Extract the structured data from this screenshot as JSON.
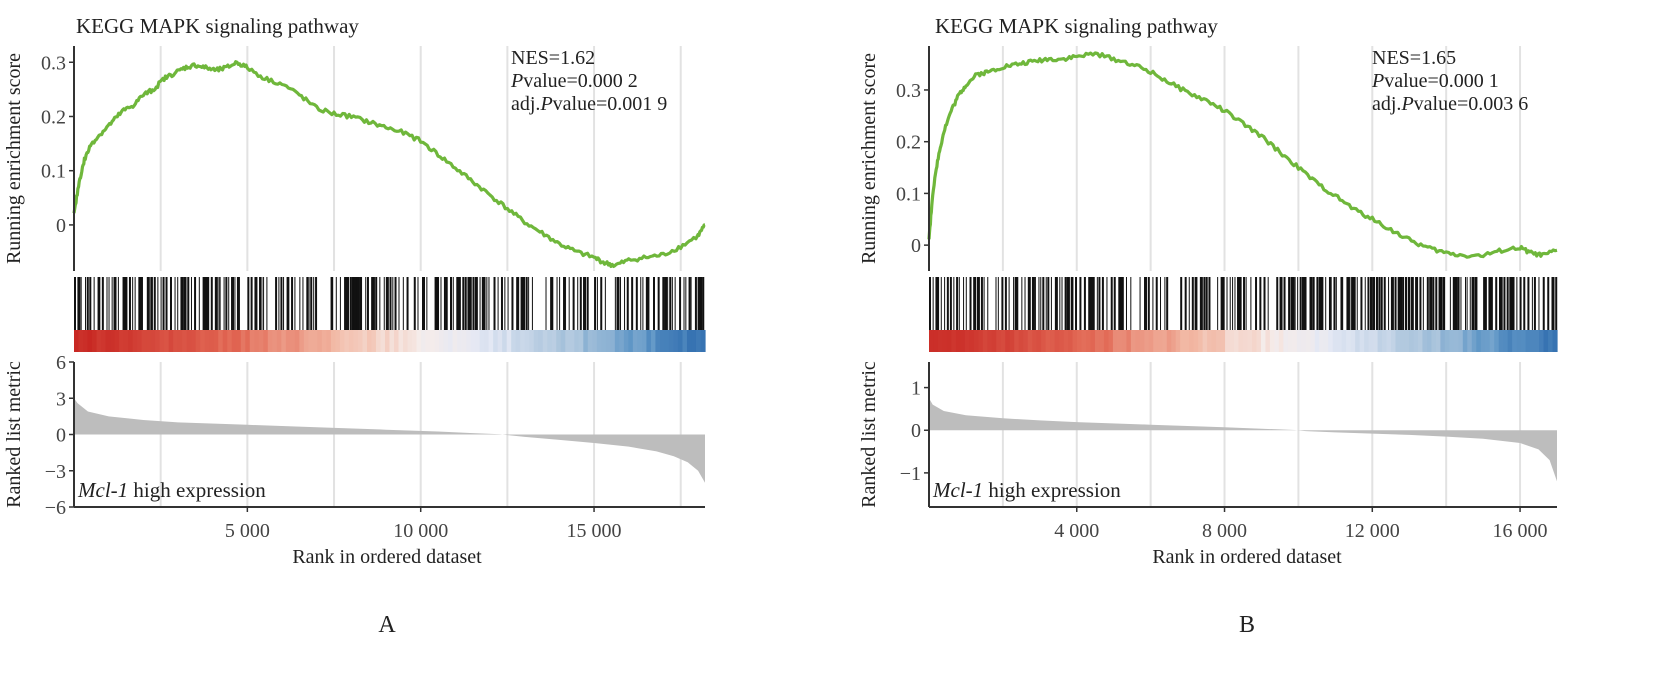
{
  "chart_data": [
    {
      "type": "line",
      "panel_label": "A",
      "title": "KEGG MAPK signaling pathway",
      "stats": {
        "nes": "NES=1.62",
        "p_prefix": "P",
        "p_rest": "value=0.000 2",
        "adj_prefix": "adj.",
        "adj_p": "P",
        "adj_rest": "value=0.001 9"
      },
      "upper_ylabel": "Running enrichment score",
      "lower_ylabel": "Ranked list metric",
      "xlabel": "Rank in ordered dataset",
      "annotation_gene": "Mcl-1",
      "annotation_rest": " high expression",
      "xlim": [
        0,
        18200
      ],
      "es_ylim": [
        -0.085,
        0.33
      ],
      "es_ticks": [
        {
          "v": 0,
          "label": "0"
        },
        {
          "v": 0.1,
          "label": "0.1"
        },
        {
          "v": 0.2,
          "label": "0.2"
        },
        {
          "v": 0.3,
          "label": "0.3"
        }
      ],
      "metric_ylim": [
        -6,
        6
      ],
      "metric_ticks": [
        {
          "v": 6,
          "label": "6"
        },
        {
          "v": 3,
          "label": "3"
        },
        {
          "v": 0,
          "label": "0"
        },
        {
          "v": -3,
          "label": "−3"
        },
        {
          "v": -6,
          "label": "−6"
        }
      ],
      "x_ticks": [
        {
          "v": 5000,
          "label": "5 000"
        },
        {
          "v": 10000,
          "label": "10 000"
        },
        {
          "v": 15000,
          "label": "15 000"
        }
      ],
      "gridlines_x": [
        2500,
        5000,
        7500,
        10000,
        12500,
        15000,
        17500
      ],
      "es_curve": {
        "x": [
          0,
          150,
          300,
          500,
          800,
          1100,
          1400,
          1700,
          2000,
          2300,
          2600,
          2900,
          3200,
          3500,
          3800,
          4100,
          4400,
          4700,
          5000,
          5500,
          6000,
          6500,
          7000,
          7500,
          8000,
          8500,
          9000,
          9500,
          10000,
          10500,
          11000,
          11500,
          12000,
          12500,
          13000,
          13500,
          14000,
          14500,
          15000,
          15300,
          15600,
          16000,
          16500,
          17000,
          17500,
          18000,
          18200
        ],
        "y": [
          0.02,
          0.08,
          0.12,
          0.15,
          0.17,
          0.19,
          0.21,
          0.22,
          0.24,
          0.25,
          0.27,
          0.28,
          0.29,
          0.295,
          0.29,
          0.285,
          0.29,
          0.3,
          0.29,
          0.27,
          0.26,
          0.24,
          0.215,
          0.205,
          0.2,
          0.19,
          0.18,
          0.17,
          0.155,
          0.13,
          0.105,
          0.08,
          0.055,
          0.03,
          0.005,
          -0.015,
          -0.035,
          -0.05,
          -0.06,
          -0.07,
          -0.075,
          -0.065,
          -0.06,
          -0.055,
          -0.04,
          -0.02,
          0.0
        ]
      },
      "metric_curve": {
        "x": [
          0,
          100,
          400,
          1000,
          2000,
          3000,
          5000,
          7000,
          9000,
          10500,
          11500,
          12300,
          12500,
          13000,
          14000,
          15000,
          16000,
          16800,
          17300,
          17700,
          18000,
          18200
        ],
        "y": [
          3.0,
          2.6,
          1.9,
          1.5,
          1.2,
          1.0,
          0.8,
          0.6,
          0.4,
          0.25,
          0.12,
          0.02,
          -0.05,
          -0.2,
          -0.45,
          -0.7,
          -1.0,
          -1.4,
          -1.8,
          -2.3,
          -3.0,
          -4.0
        ]
      },
      "hit_clusters": [
        [
          0,
          1300
        ],
        [
          1400,
          2000
        ],
        [
          2100,
          2800
        ],
        [
          2900,
          3500
        ],
        [
          3600,
          4200
        ],
        [
          4200,
          4700
        ],
        [
          5000,
          5600
        ],
        [
          5800,
          6400
        ],
        [
          6500,
          7000
        ],
        [
          7400,
          8300
        ],
        [
          8400,
          9000
        ],
        [
          9100,
          9600
        ],
        [
          9800,
          10200
        ],
        [
          10400,
          11100
        ],
        [
          11200,
          12000
        ],
        [
          12100,
          13300
        ],
        [
          13600,
          14800
        ],
        [
          15000,
          15400
        ],
        [
          15600,
          16600
        ],
        [
          16700,
          18200
        ]
      ]
    },
    {
      "type": "line",
      "panel_label": "B",
      "title": "KEGG MAPK signaling pathway",
      "stats": {
        "nes": "NES=1.65",
        "p_prefix": "P",
        "p_rest": "value=0.000 1",
        "adj_prefix": "adj.",
        "adj_p": "P",
        "adj_rest": "value=0.003 6"
      },
      "upper_ylabel": "Running enrichment score",
      "lower_ylabel": "Ranked list metric",
      "xlabel": "Rank in ordered dataset",
      "annotation_gene": "Mcl-1",
      "annotation_rest": " high expression",
      "xlim": [
        0,
        17000
      ],
      "es_ylim": [
        -0.05,
        0.385
      ],
      "es_ticks": [
        {
          "v": 0,
          "label": "0"
        },
        {
          "v": 0.1,
          "label": "0.1"
        },
        {
          "v": 0.2,
          "label": "0.2"
        },
        {
          "v": 0.3,
          "label": "0.3"
        }
      ],
      "metric_ylim": [
        -1.8,
        1.6
      ],
      "metric_ticks": [
        {
          "v": 1,
          "label": "1"
        },
        {
          "v": 0,
          "label": "0"
        },
        {
          "v": -1,
          "label": "−1"
        }
      ],
      "x_ticks": [
        {
          "v": 4000,
          "label": "4 000"
        },
        {
          "v": 8000,
          "label": "8 000"
        },
        {
          "v": 12000,
          "label": "12 000"
        },
        {
          "v": 16000,
          "label": "16 000"
        }
      ],
      "gridlines_x": [
        2000,
        4000,
        6000,
        8000,
        10000,
        12000,
        14000,
        16000
      ],
      "es_curve": {
        "x": [
          0,
          100,
          250,
          400,
          600,
          800,
          1000,
          1300,
          1600,
          2000,
          2400,
          2800,
          3200,
          3600,
          4000,
          4500,
          5000,
          5500,
          6000,
          6500,
          7000,
          7500,
          8000,
          8500,
          9000,
          9500,
          10000,
          10500,
          11000,
          11500,
          12000,
          12500,
          13000,
          13500,
          14000,
          14500,
          15000,
          15500,
          16000,
          16300,
          16600,
          17000
        ],
        "y": [
          0.01,
          0.1,
          0.17,
          0.22,
          0.26,
          0.29,
          0.31,
          0.33,
          0.335,
          0.345,
          0.35,
          0.355,
          0.36,
          0.36,
          0.365,
          0.37,
          0.36,
          0.35,
          0.335,
          0.315,
          0.295,
          0.28,
          0.26,
          0.235,
          0.21,
          0.18,
          0.15,
          0.12,
          0.095,
          0.07,
          0.05,
          0.03,
          0.01,
          -0.005,
          -0.015,
          -0.02,
          -0.02,
          -0.01,
          -0.005,
          -0.015,
          -0.02,
          -0.01
        ]
      },
      "metric_curve": {
        "x": [
          0,
          100,
          400,
          1000,
          2000,
          3000,
          4000,
          6000,
          8000,
          9500,
          9900,
          10000,
          10200,
          11000,
          12000,
          13000,
          14000,
          15000,
          16000,
          16500,
          16800,
          17000
        ],
        "y": [
          0.75,
          0.6,
          0.45,
          0.35,
          0.28,
          0.23,
          0.19,
          0.13,
          0.07,
          0.02,
          0.005,
          -0.005,
          -0.02,
          -0.05,
          -0.08,
          -0.11,
          -0.15,
          -0.2,
          -0.3,
          -0.45,
          -0.7,
          -1.2
        ]
      },
      "hit_clusters": [
        [
          0,
          1700
        ],
        [
          1800,
          2400
        ],
        [
          2500,
          3300
        ],
        [
          3300,
          4400
        ],
        [
          4400,
          5500
        ],
        [
          5700,
          6500
        ],
        [
          6800,
          7600
        ],
        [
          7800,
          8600
        ],
        [
          8700,
          9200
        ],
        [
          9400,
          10200
        ],
        [
          10300,
          11200
        ],
        [
          11300,
          12000
        ],
        [
          12100,
          13000
        ],
        [
          13000,
          14000
        ],
        [
          14100,
          14900
        ],
        [
          15000,
          15800
        ],
        [
          15900,
          17000
        ]
      ]
    }
  ]
}
